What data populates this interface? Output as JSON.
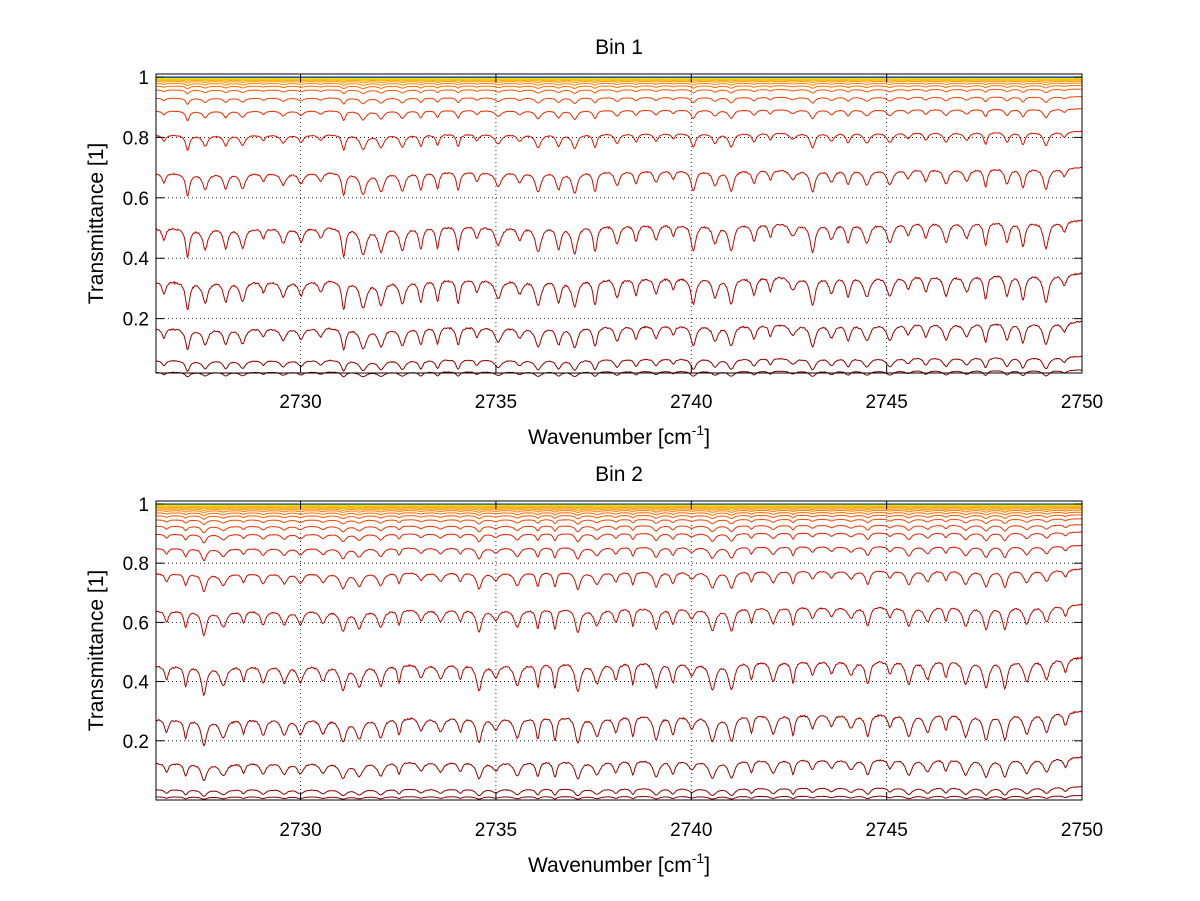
{
  "chart_data": [
    {
      "type": "line",
      "title": "Bin 1",
      "xlabel": "Wavenumber [cm",
      "xlabel_sup": "-1",
      "xlabel_end": "]",
      "ylabel": "Transmittance [1]",
      "xlim": [
        2726.3,
        2750
      ],
      "ylim": [
        0.02,
        1.01
      ],
      "xticks": [
        2730,
        2735,
        2740,
        2745,
        2750
      ],
      "yticks": [
        0.2,
        0.4,
        0.6,
        0.8,
        1
      ],
      "ytick_labels": [
        "0.2",
        "0.4",
        "0.6",
        "0.8",
        "1"
      ],
      "grid": true,
      "n_series": 30,
      "series_levels": [
        0.03,
        0.075,
        0.19,
        0.35,
        0.525,
        0.7,
        0.82,
        0.895,
        0.935,
        0.96,
        0.972,
        0.98,
        0.986,
        0.99,
        0.993,
        0.995,
        0.9965,
        0.9975,
        0.9982,
        0.9987,
        0.999,
        0.9993,
        0.9995,
        0.9996,
        0.9997,
        0.9998,
        0.99985,
        0.9999,
        0.99993,
        0.99995
      ],
      "absorption_line_spacing_cm-1": 0.5,
      "colormap": [
        "#800000",
        "#b00000",
        "#e01000",
        "#ff5000",
        "#ff9000",
        "#ffc800",
        "#e8f000",
        "#90e020",
        "#20c8c0",
        "#0070d0",
        "#002090"
      ]
    },
    {
      "type": "line",
      "title": "Bin 2",
      "xlabel": "Wavenumber [cm",
      "xlabel_sup": "-1",
      "xlabel_end": "]",
      "ylabel": "Transmittance [1]",
      "xlim": [
        2726.3,
        2750
      ],
      "ylim": [
        0.0,
        1.01
      ],
      "xticks": [
        2730,
        2735,
        2740,
        2745,
        2750
      ],
      "yticks": [
        0.2,
        0.4,
        0.6,
        0.8,
        1
      ],
      "ytick_labels": [
        "0.2",
        "0.4",
        "0.6",
        "0.8",
        "1"
      ],
      "grid": true,
      "n_series": 36,
      "series_levels": [
        0.015,
        0.045,
        0.145,
        0.3,
        0.48,
        0.66,
        0.78,
        0.86,
        0.905,
        0.93,
        0.95,
        0.963,
        0.972,
        0.979,
        0.984,
        0.988,
        0.991,
        0.993,
        0.995,
        0.9962,
        0.9972,
        0.998,
        0.9985,
        0.9989,
        0.9992,
        0.9994,
        0.9996,
        0.9997,
        0.9998,
        0.99985,
        0.9999,
        0.99993,
        0.99995,
        0.99996,
        0.99997,
        0.99998
      ],
      "absorption_line_spacing_cm-1": 0.5,
      "colormap": [
        "#800000",
        "#b00000",
        "#e01000",
        "#ff5000",
        "#ff9000",
        "#ffc800",
        "#e8f000",
        "#90e020",
        "#20c8c0",
        "#0070d0",
        "#002090"
      ]
    }
  ]
}
